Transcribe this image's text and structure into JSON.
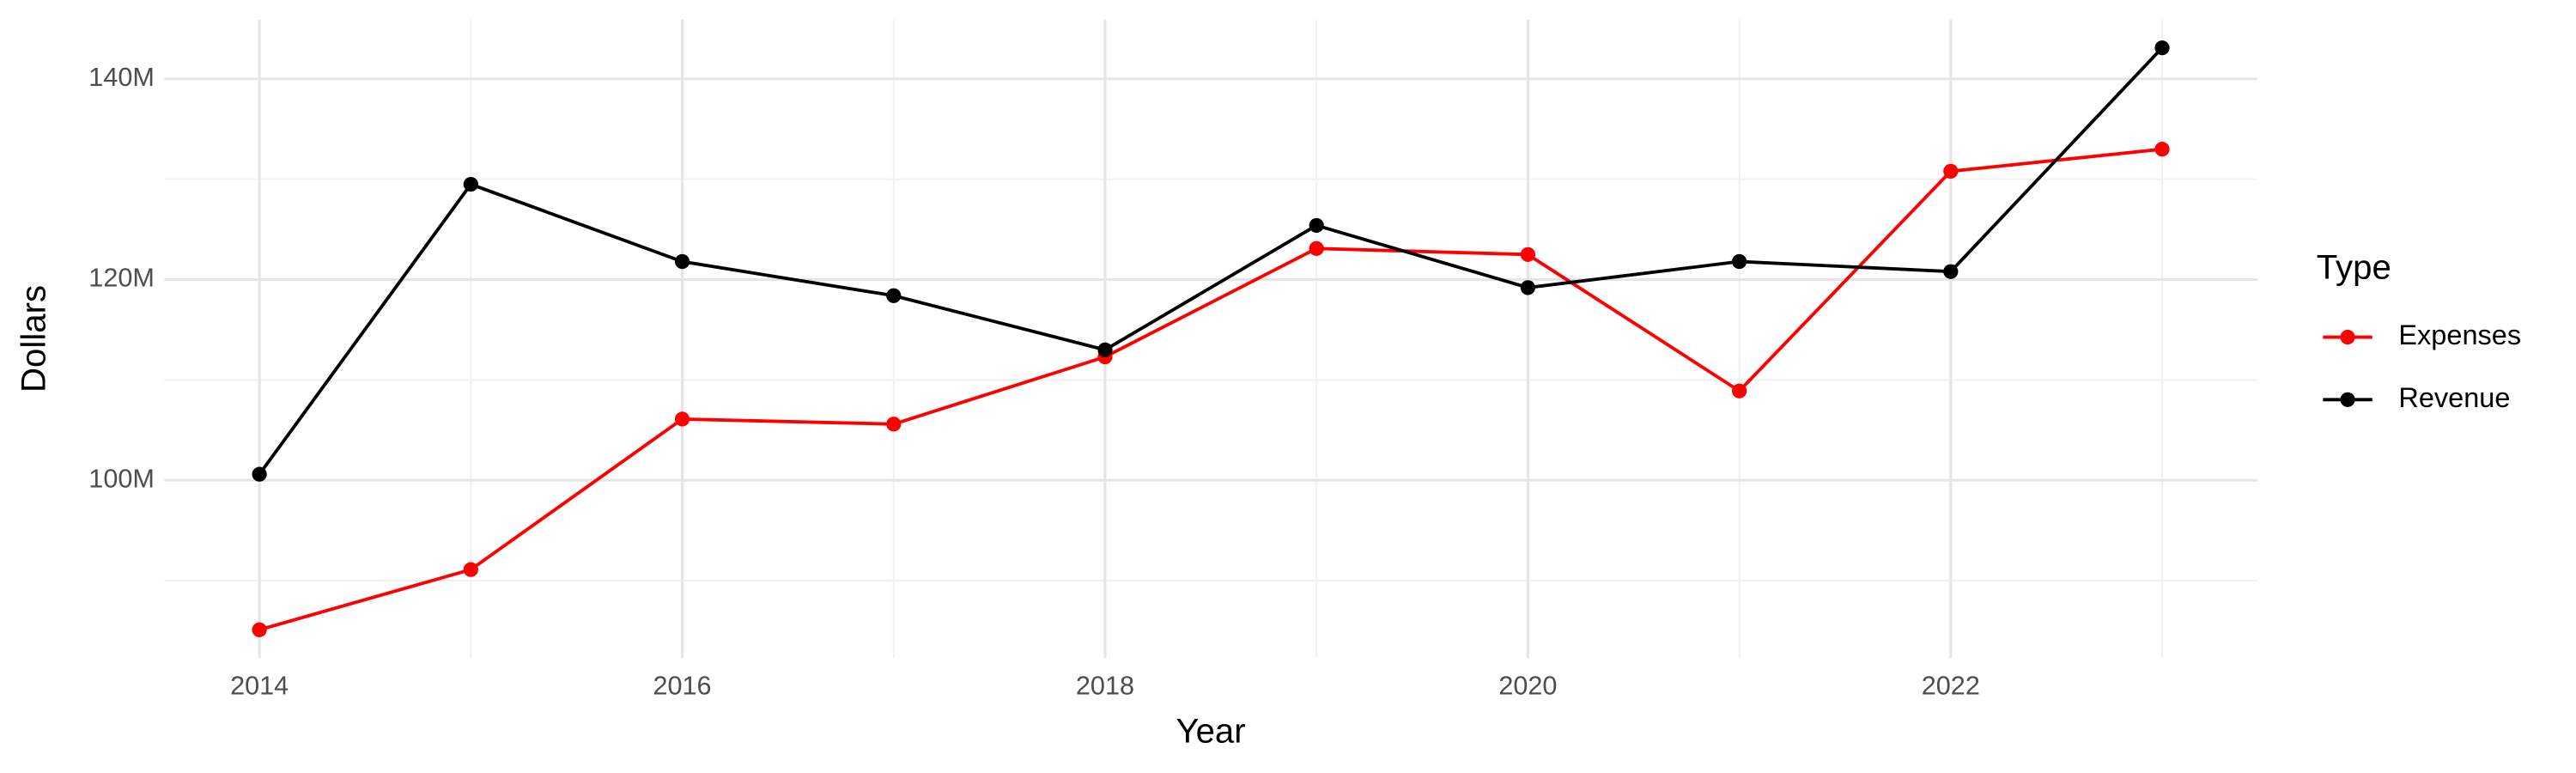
{
  "chart_data": {
    "type": "line",
    "x_label": "Year",
    "y_label": "Dollars",
    "legend_title": "Type",
    "legend_position": "right",
    "x": [
      2014,
      2015,
      2016,
      2017,
      2018,
      2019,
      2020,
      2021,
      2022,
      2023
    ],
    "series": [
      {
        "name": "Expenses",
        "color": "#ff0000",
        "values": [
          85100000,
          91100000,
          106100000,
          105600000,
          112300000,
          123100000,
          122500000,
          108900000,
          130800000,
          133000000
        ]
      },
      {
        "name": "Revenue",
        "color": "#000000",
        "values": [
          100600000,
          129500000,
          121800000,
          118400000,
          113000000,
          125400000,
          119200000,
          121800000,
          120800000,
          143100000
        ]
      }
    ],
    "xlim": [
      2013.55,
      2023.45
    ],
    "xticks": [
      2014,
      2016,
      2018,
      2020,
      2022
    ],
    "ylim": [
      82300000,
      145900000
    ],
    "yticks": [
      {
        "value": 100000000,
        "label": "100M"
      },
      {
        "value": 120000000,
        "label": "120M"
      },
      {
        "value": 140000000,
        "label": "140M"
      }
    ],
    "grid": true
  }
}
